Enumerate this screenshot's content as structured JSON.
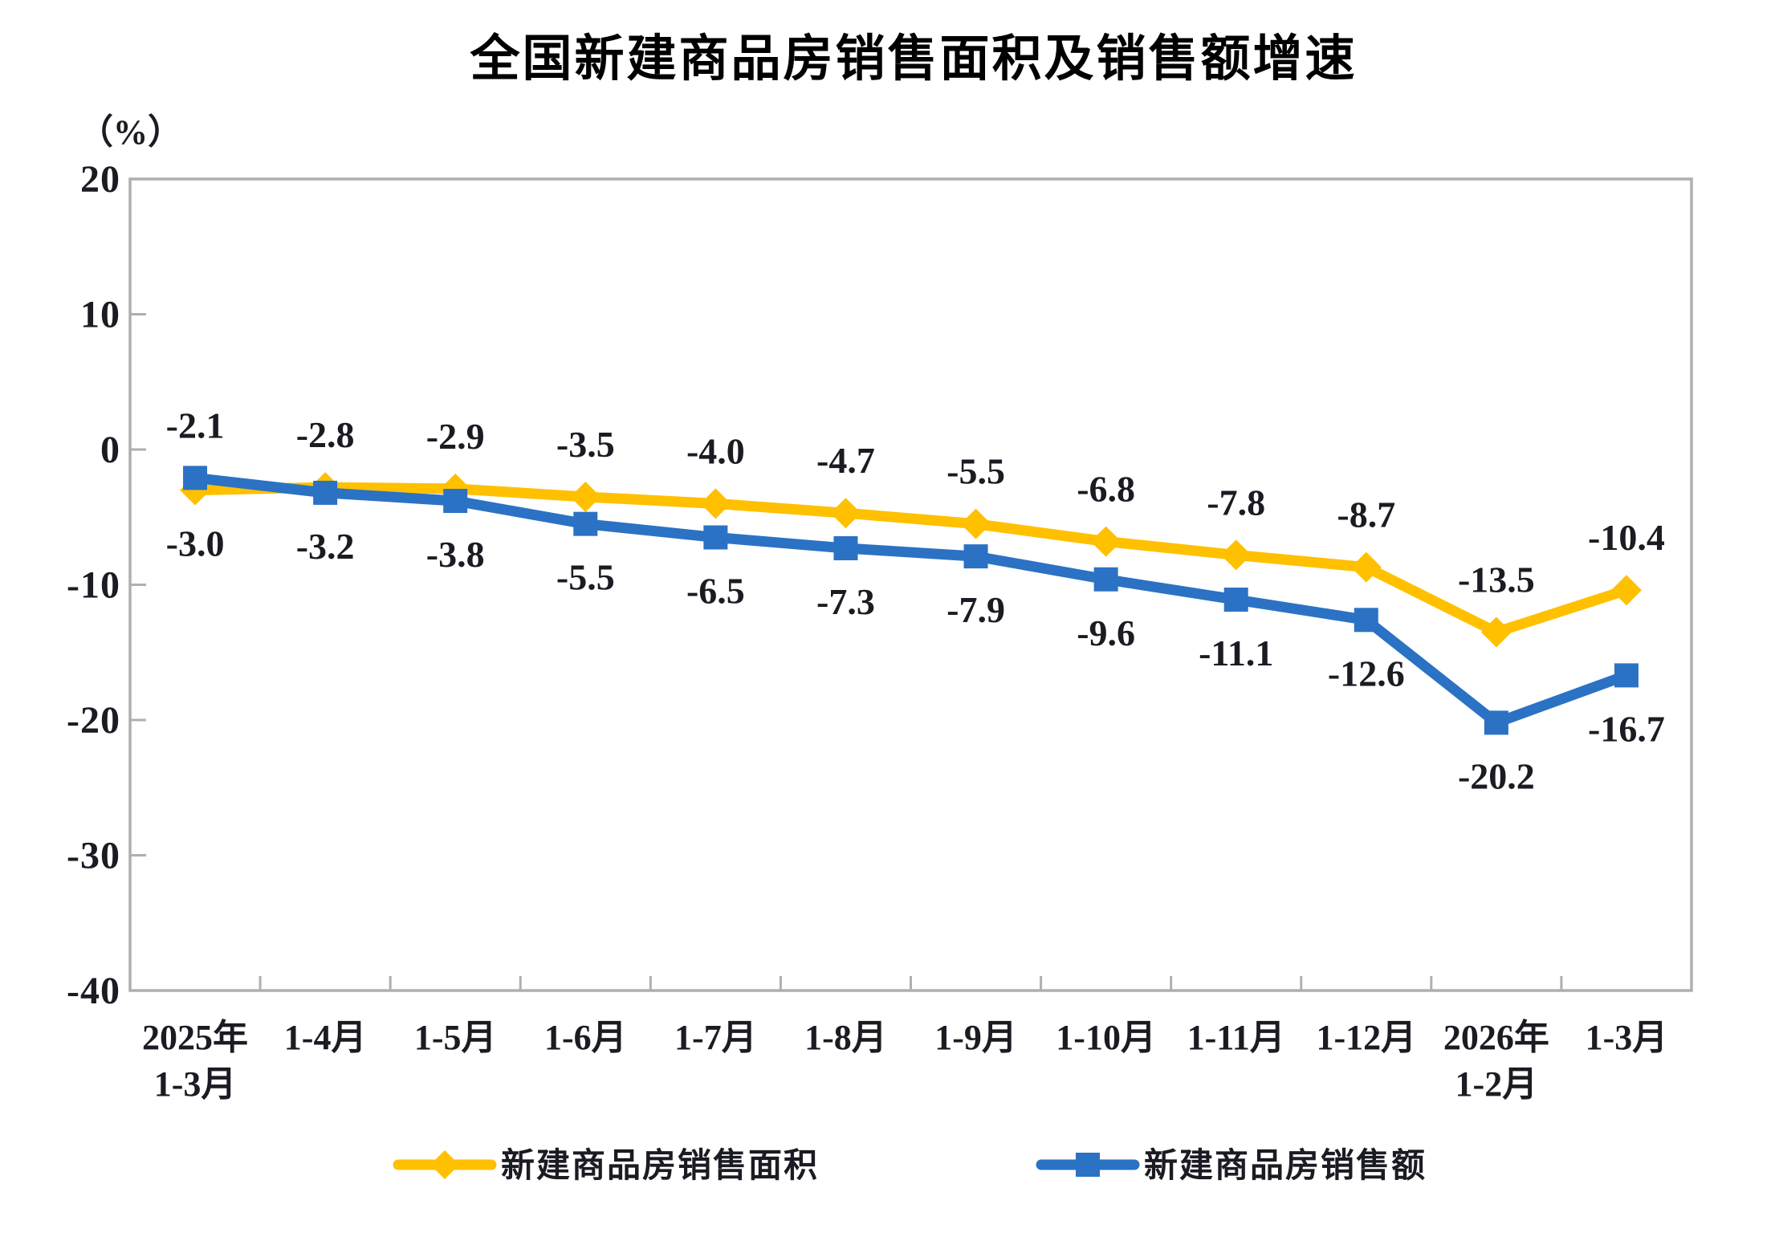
{
  "title": "全国新建商品房销售面积及销售额增速",
  "unit_label": "（%）",
  "chart_data": {
    "type": "line",
    "categories": [
      [
        "2025年",
        "1-3月"
      ],
      [
        "1-4月"
      ],
      [
        "1-5月"
      ],
      [
        "1-6月"
      ],
      [
        "1-7月"
      ],
      [
        "1-8月"
      ],
      [
        "1-9月"
      ],
      [
        "1-10月"
      ],
      [
        "1-11月"
      ],
      [
        "1-12月"
      ],
      [
        "2026年",
        "1-2月"
      ],
      [
        "1-3月"
      ]
    ],
    "series": [
      {
        "key": "sales-area",
        "name": "新建商品房销售面积",
        "color": "#FFC000",
        "marker": "diamond",
        "values": [
          -3.0,
          -2.8,
          -2.9,
          -3.5,
          -4.0,
          -4.7,
          -5.5,
          -6.8,
          -7.8,
          -8.7,
          -13.5,
          -10.4
        ],
        "label_sides": [
          "below",
          "above",
          "above",
          "above",
          "above",
          "above",
          "above",
          "above",
          "above",
          "above",
          "above",
          "above"
        ]
      },
      {
        "key": "sales-amount",
        "name": "新建商品房销售额",
        "color": "#2B72C4",
        "marker": "square",
        "values": [
          -2.1,
          -3.2,
          -3.8,
          -5.5,
          -6.5,
          -7.3,
          -7.9,
          -9.6,
          -11.1,
          -12.6,
          -20.2,
          -16.7
        ],
        "label_sides": [
          "above",
          "below",
          "below",
          "below",
          "below",
          "below",
          "below",
          "below",
          "below",
          "below",
          "below",
          "below"
        ]
      }
    ],
    "ylim": [
      -40,
      20
    ],
    "yticks": [
      20,
      10,
      0,
      -10,
      -20,
      -30,
      -40
    ],
    "grid": false,
    "legend_position": "bottom",
    "axis_color": "#afafaf",
    "text_color": "#1b1b23"
  }
}
